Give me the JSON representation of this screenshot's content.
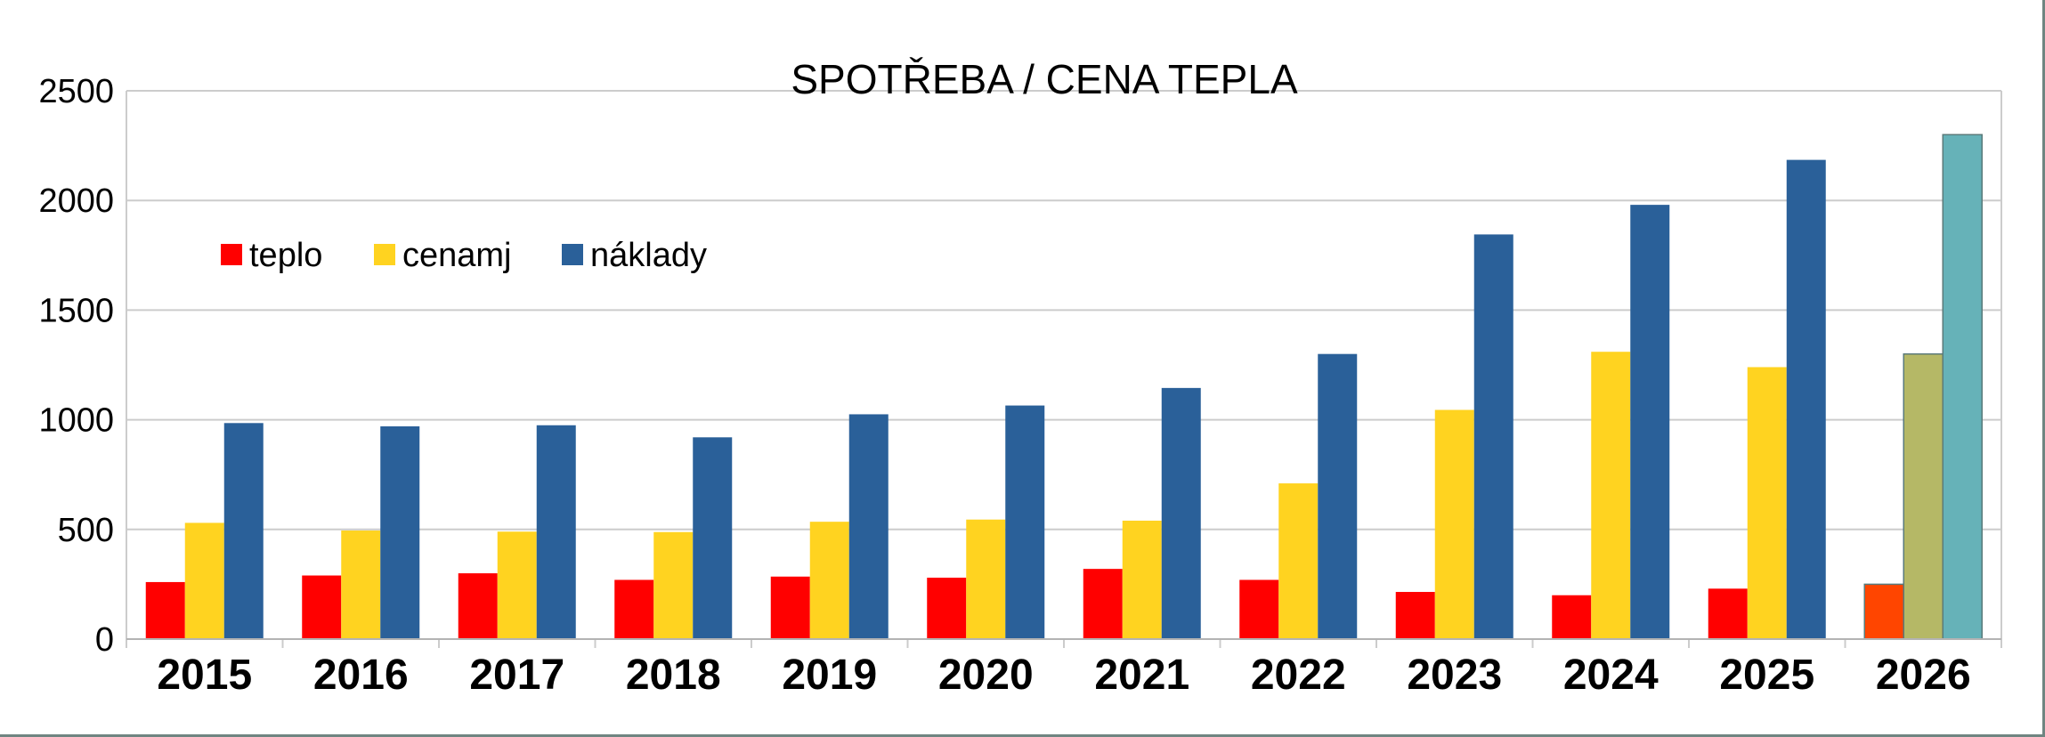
{
  "chart_data": {
    "type": "bar",
    "title": "SPOTŘEBA / CENA TEPLA",
    "xlabel": "",
    "ylabel": "",
    "ylim": [
      0,
      2500
    ],
    "yticks": [
      0,
      500,
      1000,
      1500,
      2000,
      2500
    ],
    "grid": true,
    "legend_position": "top-left",
    "categories": [
      "2015",
      "2016",
      "2017",
      "2018",
      "2019",
      "2020",
      "2021",
      "2022",
      "2023",
      "2024",
      "2025",
      "2026"
    ],
    "series": [
      {
        "name": "teplo",
        "color": "#ff0000",
        "highlight_color": "#ff4500",
        "values": [
          260,
          290,
          300,
          270,
          285,
          280,
          320,
          270,
          215,
          200,
          230,
          250
        ]
      },
      {
        "name": "cenamj",
        "color": "#ffd320",
        "highlight_color": "#b5b866",
        "values": [
          530,
          495,
          490,
          488,
          535,
          545,
          540,
          710,
          1045,
          1310,
          1240,
          1300
        ]
      },
      {
        "name": "náklady",
        "color": "#2a6099",
        "highlight_color": "#66b2b8",
        "values": [
          985,
          970,
          975,
          920,
          1025,
          1065,
          1145,
          1300,
          1845,
          1980,
          2185,
          2300
        ]
      }
    ],
    "highlighted_category": "2026"
  }
}
